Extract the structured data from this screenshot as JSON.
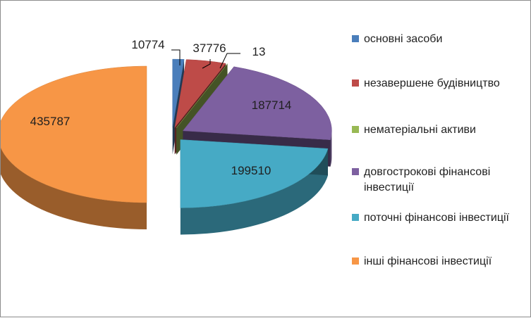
{
  "chart_data": {
    "type": "pie",
    "style": "3d-exploded",
    "categories": [
      "основні засоби",
      "незавершене будівництво",
      "нематеріальні активи",
      "довгострокові фінансові інвестиції",
      "поточні фінансові інвестиції",
      "інші фінансові інвестиції"
    ],
    "values": [
      10774,
      37776,
      13,
      187714,
      199510,
      435787
    ],
    "colors": [
      "#4a7ebb",
      "#be4b48",
      "#98b954",
      "#7d60a0",
      "#46aac5",
      "#f79646"
    ],
    "legend_position": "right",
    "title": ""
  }
}
